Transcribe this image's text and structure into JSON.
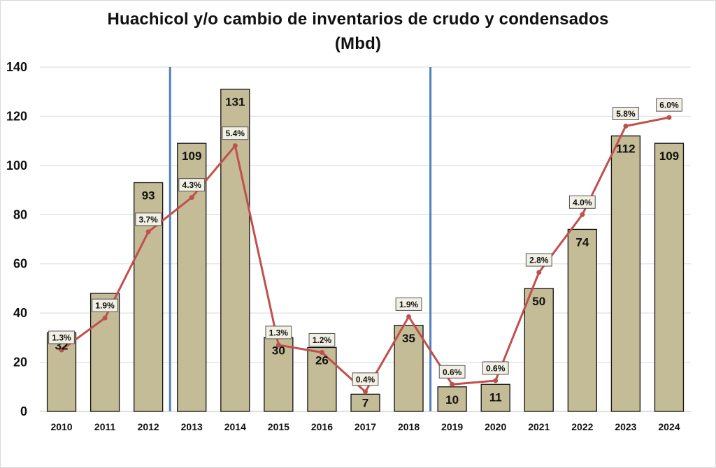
{
  "chart_data": {
    "type": "bar",
    "title": "Huachicol y/o cambio de inventarios de crudo y condensados",
    "subtitle": "(Mbd)",
    "categories": [
      "2010",
      "2011",
      "2012",
      "2013",
      "2014",
      "2015",
      "2016",
      "2017",
      "2018",
      "2019",
      "2020",
      "2021",
      "2022",
      "2023",
      "2024"
    ],
    "series": [
      {
        "type": "bar",
        "values": [
          32,
          48,
          93,
          109,
          131,
          30,
          26,
          7,
          35,
          10,
          11,
          50,
          74,
          112,
          109
        ],
        "labels": [
          "32",
          "",
          "93",
          "109",
          "131",
          "30",
          "26",
          "7",
          "35",
          "10",
          "11",
          "50",
          "74",
          "112",
          "109"
        ],
        "color": "#c4bc96"
      },
      {
        "type": "line",
        "values": [
          25,
          38,
          73,
          87,
          108,
          27,
          24,
          8,
          38.5,
          11,
          12.5,
          56.5,
          80,
          116,
          119.5
        ],
        "labels": [
          "1.3%",
          "1.9%",
          "3.7%",
          "4.3%",
          "5.4%",
          "1.3%",
          "1.2%",
          "0.4%",
          "1.9%",
          "0.6%",
          "0.6%",
          "2.8%",
          "4.0%",
          "5.8%",
          "6.0%"
        ],
        "color": "#c0504d"
      }
    ],
    "ylim": [
      0,
      140
    ],
    "yticks": [
      0,
      20,
      40,
      60,
      80,
      100,
      120,
      140
    ],
    "grid": true,
    "separators_after": [
      "2012",
      "2018"
    ],
    "separator_color": "#4f81bd"
  }
}
